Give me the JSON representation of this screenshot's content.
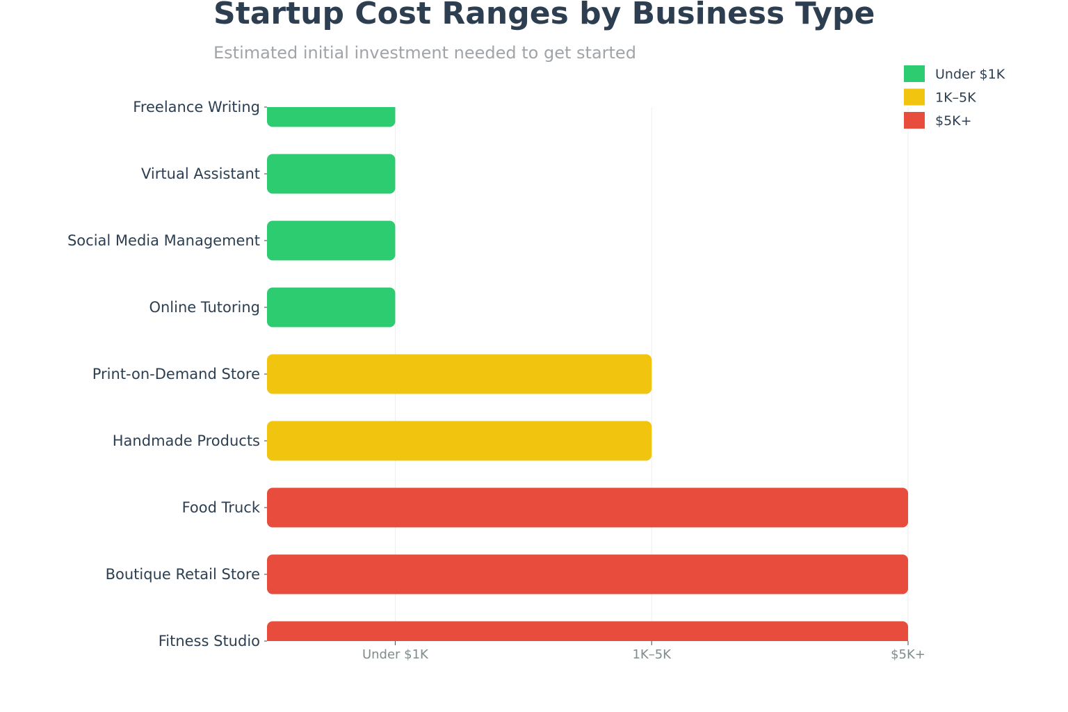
{
  "chart_data": {
    "type": "bar",
    "orientation": "horizontal",
    "title": "Startup Cost Ranges by Business Type",
    "subtitle": "Estimated initial investment needed to get started",
    "categories": [
      "Freelance Writing",
      "Virtual Assistant",
      "Social Media Management",
      "Online Tutoring",
      "Print-on-Demand Store",
      "Handmade Products",
      "Food Truck",
      "Boutique Retail Store",
      "Fitness Studio"
    ],
    "values": [
      1,
      1,
      1,
      1,
      2,
      2,
      3,
      3,
      3
    ],
    "cost_tiers": [
      "Under $1K",
      "Under $1K",
      "Under $1K",
      "Under $1K",
      "1K–5K",
      "1K–5K",
      "$5K+",
      "$5K+",
      "$5K+"
    ],
    "x_ticks": [
      {
        "value": 1,
        "label": "Under $1K"
      },
      {
        "value": 2,
        "label": "1K–5K"
      },
      {
        "value": 3,
        "label": "$5K+"
      }
    ],
    "xlim": [
      0.5,
      3
    ],
    "xlabel": "",
    "ylabel": "",
    "grid": "vertical",
    "legend": {
      "placement": "top-right",
      "entries": [
        {
          "label": "Under $1K",
          "color": "#2ecc71"
        },
        {
          "label": "1K–5K",
          "color": "#f1c40f"
        },
        {
          "label": "$5K+",
          "color": "#e74c3c"
        }
      ]
    },
    "colors": {
      "Under $1K": "#2ecc71",
      "1K–5K": "#f1c40f",
      "$5K+": "#e74c3c"
    },
    "title_color": "#2c3e50",
    "subtitle_color": "#a0a4a8",
    "tick_color": "#7f8c8d",
    "grid_color": "#eeeeee"
  }
}
